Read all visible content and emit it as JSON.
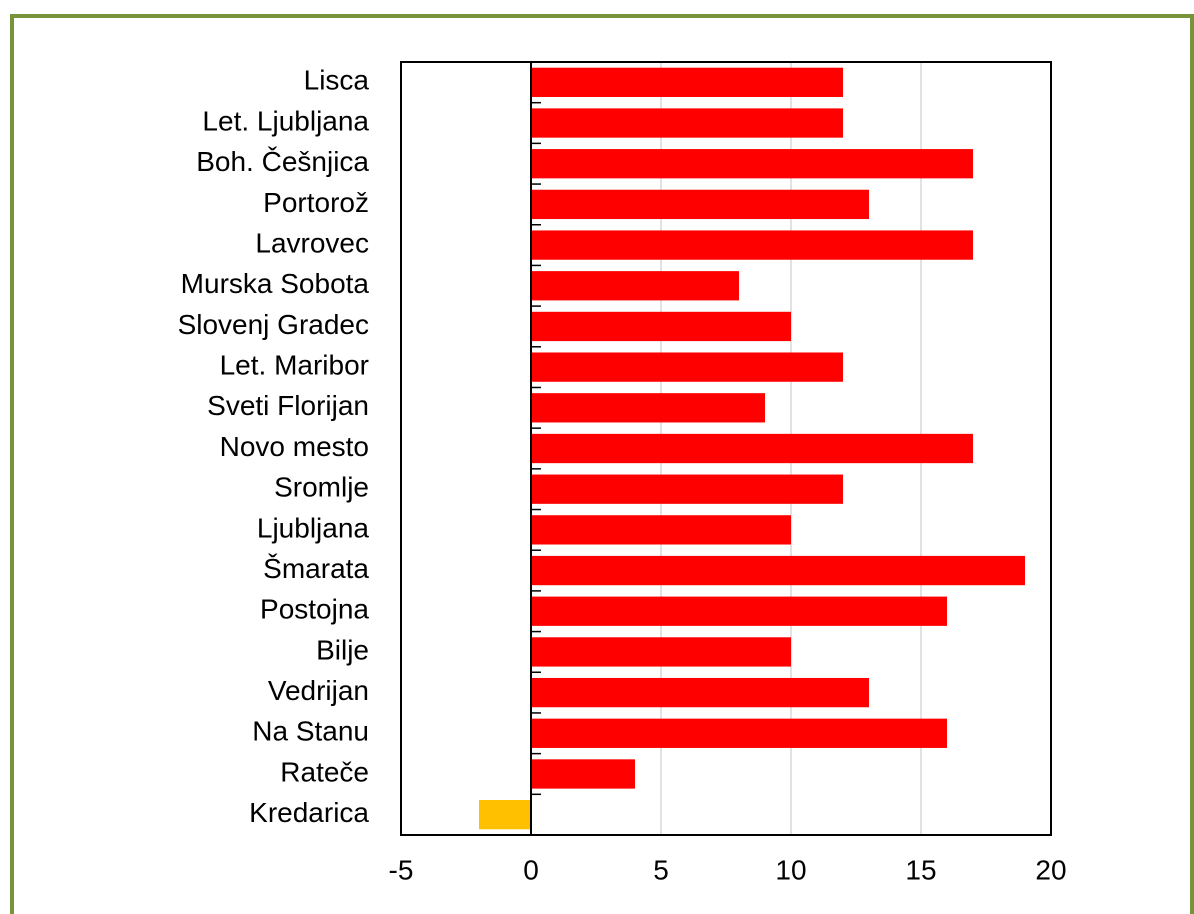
{
  "chart_data": {
    "type": "barh",
    "categories": [
      "Lisca",
      "Let. Ljubljana",
      "Boh. Češnjica",
      "Portorož",
      "Lavrovec",
      "Murska Sobota",
      "Slovenj Gradec",
      "Let. Maribor",
      "Sveti Florijan",
      "Novo mesto",
      "Sromlje",
      "Ljubljana",
      "Šmarata",
      "Postojna",
      "Bilje",
      "Vedrijan",
      "Na Stanu",
      "Rateče",
      "Kredarica"
    ],
    "values": [
      12,
      12,
      17,
      13,
      17,
      8,
      10,
      12,
      9,
      17,
      12,
      10,
      19,
      16,
      10,
      13,
      16,
      4,
      -2
    ],
    "colors": [
      "#ff0000",
      "#ff0000",
      "#ff0000",
      "#ff0000",
      "#ff0000",
      "#ff0000",
      "#ff0000",
      "#ff0000",
      "#ff0000",
      "#ff0000",
      "#ff0000",
      "#ff0000",
      "#ff0000",
      "#ff0000",
      "#ff0000",
      "#ff0000",
      "#ff0000",
      "#ff0000",
      "#ffc000"
    ],
    "xlim": [
      -5,
      20
    ],
    "xticks": [
      -5,
      0,
      5,
      10,
      15,
      20
    ],
    "grid": true
  }
}
